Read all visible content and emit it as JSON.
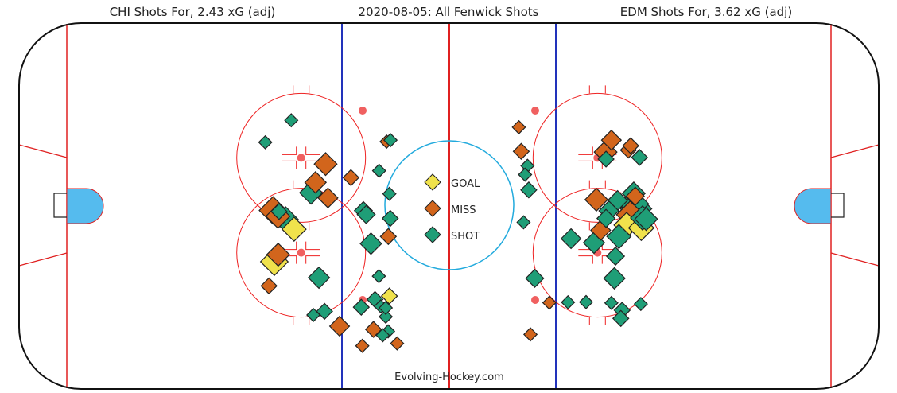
{
  "titles": {
    "left": "CHI Shots For, 2.43 xG (adj)",
    "center": "2020-08-05: All Fenwick Shots",
    "right": "EDM Shots For, 3.62 xG (adj)"
  },
  "credit": "Evolving-Hockey.com",
  "legend": [
    {
      "key": "goal",
      "label": "GOAL",
      "color": "#f0e24c"
    },
    {
      "key": "miss",
      "label": "MISS",
      "color": "#d2651c"
    },
    {
      "key": "shot",
      "label": "SHOT",
      "color": "#1f9e77"
    }
  ],
  "colors": {
    "blue_line": "#2233bb",
    "red_line": "#e02020",
    "faceoff_circle": "#ee2222",
    "faceoff_dot": "#f06060",
    "center_circle": "#22aadd",
    "crease": "#55bbee",
    "boards": "#111111"
  },
  "chart_data": {
    "type": "scatter",
    "x_range_ft": [
      -100,
      100
    ],
    "y_range_ft": [
      -42.5,
      42.5
    ],
    "marker_size": "scaled by expected goals (xG)",
    "shots": [
      {
        "x": -85.7,
        "y": 29.2,
        "xg": 0.01,
        "result": "shot"
      },
      {
        "x": -73.6,
        "y": 39.4,
        "xg": 0.01,
        "result": "shot"
      },
      {
        "x": -57.6,
        "y": 19.1,
        "xg": 0.06,
        "result": "miss"
      },
      {
        "x": -62.3,
        "y": 10.6,
        "xg": 0.05,
        "result": "miss"
      },
      {
        "x": -56.5,
        "y": 3.4,
        "xg": 0.04,
        "result": "miss"
      },
      {
        "x": -45.8,
        "y": 12.8,
        "xg": 0.02,
        "result": "miss"
      },
      {
        "x": -40.0,
        "y": -2.5,
        "xg": 0.03,
        "result": "shot"
      },
      {
        "x": -64.4,
        "y": 5.8,
        "xg": 0.06,
        "result": "shot"
      },
      {
        "x": -79.3,
        "y": -2.9,
        "xg": 0.02,
        "result": "shot"
      },
      {
        "x": -82.1,
        "y": -2.4,
        "xg": 0.1,
        "result": "miss"
      },
      {
        "x": -76.2,
        "y": -6.6,
        "xg": 0.08,
        "result": "shot"
      },
      {
        "x": -72.3,
        "y": -11.1,
        "xg": 0.07,
        "result": "goal"
      },
      {
        "x": -79.8,
        "y": -5.1,
        "xg": 0.07,
        "result": "miss"
      },
      {
        "x": -79.7,
        "y": -22.9,
        "xg": 0.06,
        "result": "miss"
      },
      {
        "x": -81.5,
        "y": -26.2,
        "xg": 0.1,
        "result": "goal"
      },
      {
        "x": -84.0,
        "y": -37.4,
        "xg": 0.02,
        "result": "miss"
      },
      {
        "x": -60.7,
        "y": -33.6,
        "xg": 0.05,
        "result": "shot"
      },
      {
        "x": -63.3,
        "y": -50.9,
        "xg": 0.01,
        "result": "shot"
      },
      {
        "x": -58.1,
        "y": -49.2,
        "xg": 0.02,
        "result": "shot"
      },
      {
        "x": -51.1,
        "y": -56.1,
        "xg": 0.04,
        "result": "miss"
      },
      {
        "x": -40.5,
        "y": -65.2,
        "xg": 0.01,
        "result": "miss"
      },
      {
        "x": -29.2,
        "y": 29.5,
        "xg": 0.01,
        "result": "miss"
      },
      {
        "x": -32.7,
        "y": 16.0,
        "xg": 0.01,
        "result": "shot"
      },
      {
        "x": -38.7,
        "y": -4.3,
        "xg": 0.03,
        "result": "shot"
      },
      {
        "x": -32.8,
        "y": -32.9,
        "xg": 0.01,
        "result": "shot"
      },
      {
        "x": -27.5,
        "y": -6.1,
        "xg": 0.02,
        "result": "shot"
      },
      {
        "x": -27.9,
        "y": 5.3,
        "xg": 0.01,
        "result": "shot"
      },
      {
        "x": -28.4,
        "y": -14.5,
        "xg": 0.02,
        "result": "miss"
      },
      {
        "x": -36.5,
        "y": -17.8,
        "xg": 0.05,
        "result": "shot"
      },
      {
        "x": -27.4,
        "y": 30.2,
        "xg": 0.01,
        "result": "shot"
      },
      {
        "x": -34.6,
        "y": -43.7,
        "xg": 0.02,
        "result": "shot"
      },
      {
        "x": -27.9,
        "y": -42.1,
        "xg": 0.02,
        "result": "goal"
      },
      {
        "x": -31.9,
        "y": -46.9,
        "xg": 0.01,
        "result": "shot"
      },
      {
        "x": -29.6,
        "y": -51.7,
        "xg": 0.01,
        "result": "shot"
      },
      {
        "x": -41.0,
        "y": -47.3,
        "xg": 0.02,
        "result": "shot"
      },
      {
        "x": -35.3,
        "y": -57.6,
        "xg": 0.02,
        "result": "miss"
      },
      {
        "x": -28.5,
        "y": -58.5,
        "xg": 0.01,
        "result": "shot"
      },
      {
        "x": -24.3,
        "y": -64.1,
        "xg": 0.01,
        "result": "miss"
      },
      {
        "x": -31.0,
        "y": -60.3,
        "xg": 0.01,
        "result": "shot"
      },
      {
        "x": -29.6,
        "y": -47.6,
        "xg": 0.01,
        "result": "shot"
      },
      {
        "x": 36.4,
        "y": 18.3,
        "xg": 0.01,
        "result": "shot"
      },
      {
        "x": 32.4,
        "y": 36.2,
        "xg": 0.01,
        "result": "miss"
      },
      {
        "x": 33.5,
        "y": 25.0,
        "xg": 0.02,
        "result": "miss"
      },
      {
        "x": 35.3,
        "y": 14.2,
        "xg": 0.01,
        "result": "shot"
      },
      {
        "x": 37.0,
        "y": 7.1,
        "xg": 0.02,
        "result": "shot"
      },
      {
        "x": 34.6,
        "y": -7.9,
        "xg": 0.01,
        "result": "shot"
      },
      {
        "x": 39.8,
        "y": -33.9,
        "xg": 0.03,
        "result": "shot"
      },
      {
        "x": 46.6,
        "y": -45.2,
        "xg": 0.01,
        "result": "miss"
      },
      {
        "x": 55.3,
        "y": -45.0,
        "xg": 0.01,
        "result": "shot"
      },
      {
        "x": 56.7,
        "y": -15.5,
        "xg": 0.04,
        "result": "shot"
      },
      {
        "x": 67.4,
        "y": -17.4,
        "xg": 0.05,
        "result": "shot"
      },
      {
        "x": 68.5,
        "y": 2.6,
        "xg": 0.06,
        "result": "miss"
      },
      {
        "x": 70.5,
        "y": -11.6,
        "xg": 0.04,
        "result": "miss"
      },
      {
        "x": 73.0,
        "y": -6.1,
        "xg": 0.03,
        "result": "shot"
      },
      {
        "x": 78.4,
        "y": 2.2,
        "xg": 0.04,
        "result": "shot"
      },
      {
        "x": 72.8,
        "y": 24.7,
        "xg": 0.06,
        "result": "miss"
      },
      {
        "x": 74.3,
        "y": -2.6,
        "xg": 0.04,
        "result": "shot"
      },
      {
        "x": 79.0,
        "y": -14.5,
        "xg": 0.07,
        "result": "shot"
      },
      {
        "x": 82.6,
        "y": -9.2,
        "xg": 0.08,
        "result": "goal"
      },
      {
        "x": 84.3,
        "y": -4.4,
        "xg": 0.1,
        "result": "miss"
      },
      {
        "x": 86.0,
        "y": 0.6,
        "xg": 0.12,
        "result": "shot"
      },
      {
        "x": 87.0,
        "y": -1.6,
        "xg": 0.14,
        "result": "shot"
      },
      {
        "x": 90.0,
        "y": -5.9,
        "xg": 0.07,
        "result": "shot"
      },
      {
        "x": 89.4,
        "y": -10.5,
        "xg": 0.08,
        "result": "goal"
      },
      {
        "x": 91.7,
        "y": -6.4,
        "xg": 0.06,
        "result": "shot"
      },
      {
        "x": 86.6,
        "y": 4.2,
        "xg": 0.03,
        "result": "miss"
      },
      {
        "x": 85.9,
        "y": 5.5,
        "xg": 0.06,
        "result": "shot"
      },
      {
        "x": 83.4,
        "y": 25.6,
        "xg": 0.02,
        "result": "miss"
      },
      {
        "x": 84.5,
        "y": 27.6,
        "xg": 0.02,
        "result": "miss"
      },
      {
        "x": 88.6,
        "y": 22.2,
        "xg": 0.02,
        "result": "shot"
      },
      {
        "x": 75.5,
        "y": 30.2,
        "xg": 0.04,
        "result": "miss"
      },
      {
        "x": 73.0,
        "y": 21.4,
        "xg": 0.02,
        "result": "shot"
      },
      {
        "x": 77.4,
        "y": -23.6,
        "xg": 0.03,
        "result": "shot"
      },
      {
        "x": 76.9,
        "y": -33.9,
        "xg": 0.05,
        "result": "shot"
      },
      {
        "x": 75.5,
        "y": -45.3,
        "xg": 0.01,
        "result": "shot"
      },
      {
        "x": 80.5,
        "y": -48.7,
        "xg": 0.02,
        "result": "shot"
      },
      {
        "x": 79.9,
        "y": -52.5,
        "xg": 0.02,
        "result": "shot"
      },
      {
        "x": 89.2,
        "y": -45.8,
        "xg": 0.01,
        "result": "shot"
      },
      {
        "x": 63.7,
        "y": -44.9,
        "xg": 0.01,
        "result": "shot"
      },
      {
        "x": 37.8,
        "y": -59.9,
        "xg": 0.01,
        "result": "miss"
      }
    ]
  }
}
